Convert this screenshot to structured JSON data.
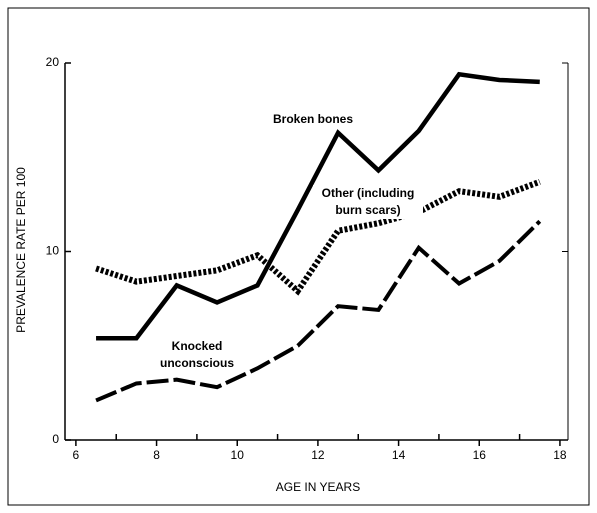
{
  "chart_data": {
    "type": "line",
    "xlabel": "AGE IN YEARS",
    "ylabel": "PREVALENCE RATE PER 100",
    "x": [
      6.5,
      7.5,
      8.5,
      9.5,
      10.5,
      11.5,
      12.5,
      13.5,
      14.5,
      15.5,
      16.5,
      17.5
    ],
    "series": [
      {
        "name": "Broken bones",
        "color": "#000000",
        "style": "solid",
        "values": [
          5.4,
          5.4,
          8.2,
          7.3,
          8.2,
          12.2,
          16.3,
          14.3,
          16.4,
          19.4,
          19.1,
          19.0
        ]
      },
      {
        "name": "Other (including burn scars)",
        "color": "#000000",
        "style": "dotted",
        "values": [
          9.1,
          8.4,
          8.7,
          9.0,
          9.8,
          7.9,
          11.1,
          11.5,
          12.1,
          13.2,
          12.9,
          13.7
        ]
      },
      {
        "name": "Knocked unconscious",
        "color": "#000000",
        "style": "dashed",
        "values": [
          2.1,
          3.0,
          3.2,
          2.8,
          3.8,
          5.0,
          7.1,
          6.9,
          10.2,
          8.3,
          9.5,
          11.6
        ]
      }
    ],
    "xlim": [
      5.73,
      18.2
    ],
    "ylim": [
      0,
      20
    ],
    "xticks": [
      6,
      8,
      10,
      12,
      14,
      16,
      18
    ],
    "yticks": [
      0,
      10,
      20
    ],
    "grid": false
  }
}
